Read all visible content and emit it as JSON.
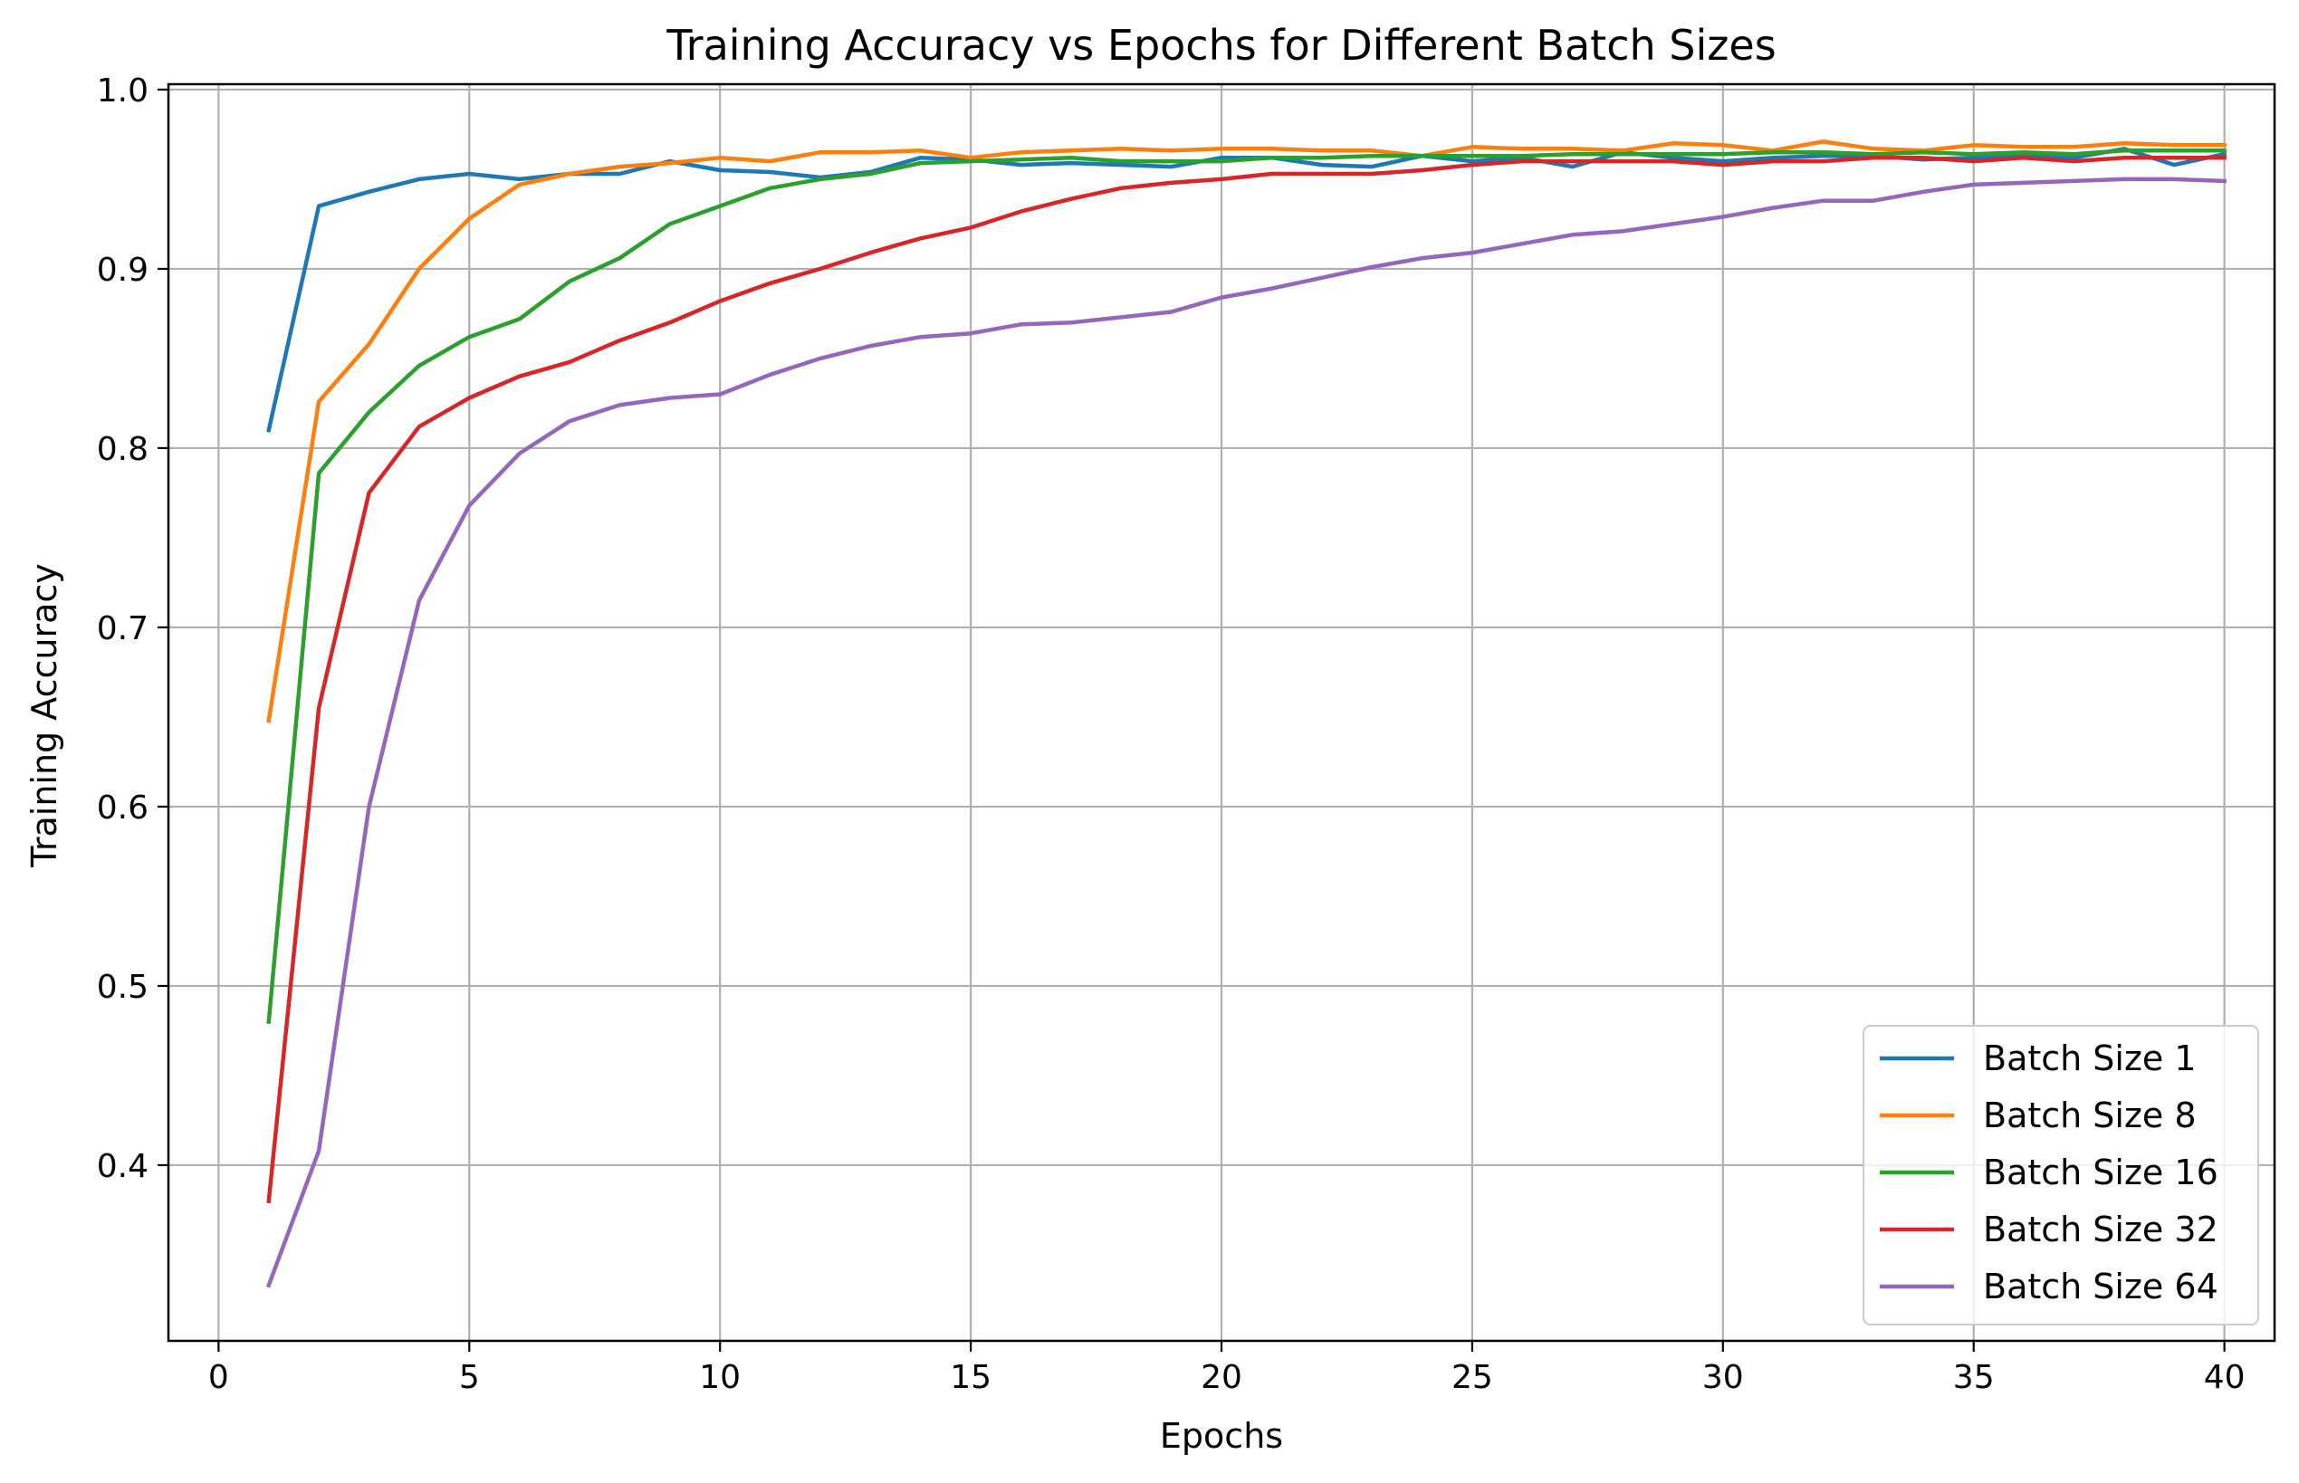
{
  "chart_data": {
    "type": "line",
    "title": "Training Accuracy vs Epochs for Different Batch Sizes",
    "xlabel": "Epochs",
    "ylabel": "Training Accuracy",
    "xlim": [
      -1,
      41
    ],
    "ylim": [
      0.302,
      1.003
    ],
    "xticks": [
      0,
      5,
      10,
      15,
      20,
      25,
      30,
      35,
      40
    ],
    "yticks": [
      0.4,
      0.5,
      0.6,
      0.7,
      0.8,
      0.9,
      1.0
    ],
    "xtick_labels": [
      "0",
      "5",
      "10",
      "15",
      "20",
      "25",
      "30",
      "35",
      "40"
    ],
    "ytick_labels": [
      "0.4",
      "0.5",
      "0.6",
      "0.7",
      "0.8",
      "0.9",
      "1.0"
    ],
    "grid": true,
    "legend_position": "bottom-right",
    "x": [
      1,
      2,
      3,
      4,
      5,
      6,
      7,
      8,
      9,
      10,
      11,
      12,
      13,
      14,
      15,
      16,
      17,
      18,
      19,
      20,
      21,
      22,
      23,
      24,
      25,
      26,
      27,
      28,
      29,
      30,
      31,
      32,
      33,
      34,
      35,
      36,
      37,
      38,
      39,
      40
    ],
    "series": [
      {
        "name": "Batch Size 1",
        "color": "#1f77b4",
        "values": [
          0.81,
          0.935,
          0.943,
          0.95,
          0.953,
          0.95,
          0.953,
          0.953,
          0.96,
          0.955,
          0.954,
          0.951,
          0.954,
          0.962,
          0.961,
          0.958,
          0.959,
          0.958,
          0.957,
          0.962,
          0.962,
          0.958,
          0.957,
          0.963,
          0.96,
          0.962,
          0.957,
          0.965,
          0.962,
          0.96,
          0.962,
          0.963,
          0.963,
          0.961,
          0.962,
          0.963,
          0.962,
          0.967,
          0.958,
          0.964
        ]
      },
      {
        "name": "Batch Size 8",
        "color": "#ff7f0e",
        "values": [
          0.648,
          0.826,
          0.858,
          0.9,
          0.928,
          0.947,
          0.953,
          0.957,
          0.959,
          0.962,
          0.96,
          0.965,
          0.965,
          0.966,
          0.962,
          0.965,
          0.966,
          0.967,
          0.966,
          0.967,
          0.967,
          0.966,
          0.966,
          0.963,
          0.968,
          0.967,
          0.967,
          0.966,
          0.97,
          0.969,
          0.966,
          0.971,
          0.967,
          0.966,
          0.969,
          0.968,
          0.968,
          0.97,
          0.969,
          0.969
        ]
      },
      {
        "name": "Batch Size 16",
        "color": "#2ca02c",
        "values": [
          0.48,
          0.786,
          0.82,
          0.846,
          0.862,
          0.872,
          0.893,
          0.906,
          0.925,
          0.935,
          0.945,
          0.95,
          0.953,
          0.959,
          0.96,
          0.961,
          0.962,
          0.96,
          0.96,
          0.96,
          0.962,
          0.962,
          0.963,
          0.963,
          0.963,
          0.963,
          0.964,
          0.964,
          0.964,
          0.964,
          0.965,
          0.965,
          0.964,
          0.965,
          0.964,
          0.965,
          0.964,
          0.966,
          0.966,
          0.966
        ]
      },
      {
        "name": "Batch Size 32",
        "color": "#d62728",
        "values": [
          0.38,
          0.655,
          0.775,
          0.812,
          0.828,
          0.84,
          0.848,
          0.86,
          0.87,
          0.882,
          0.892,
          0.9,
          0.909,
          0.917,
          0.923,
          0.932,
          0.939,
          0.945,
          0.948,
          0.95,
          0.953,
          0.953,
          0.953,
          0.955,
          0.958,
          0.96,
          0.96,
          0.96,
          0.96,
          0.958,
          0.96,
          0.96,
          0.962,
          0.962,
          0.96,
          0.962,
          0.96,
          0.962,
          0.962,
          0.962
        ]
      },
      {
        "name": "Batch Size 64",
        "color": "#9467bd",
        "values": [
          0.333,
          0.408,
          0.6,
          0.715,
          0.768,
          0.797,
          0.815,
          0.824,
          0.828,
          0.83,
          0.841,
          0.85,
          0.857,
          0.862,
          0.864,
          0.869,
          0.87,
          0.873,
          0.876,
          0.884,
          0.889,
          0.895,
          0.901,
          0.906,
          0.909,
          0.914,
          0.919,
          0.921,
          0.925,
          0.929,
          0.934,
          0.938,
          0.938,
          0.943,
          0.947,
          0.948,
          0.949,
          0.95,
          0.95,
          0.949
        ]
      }
    ]
  }
}
